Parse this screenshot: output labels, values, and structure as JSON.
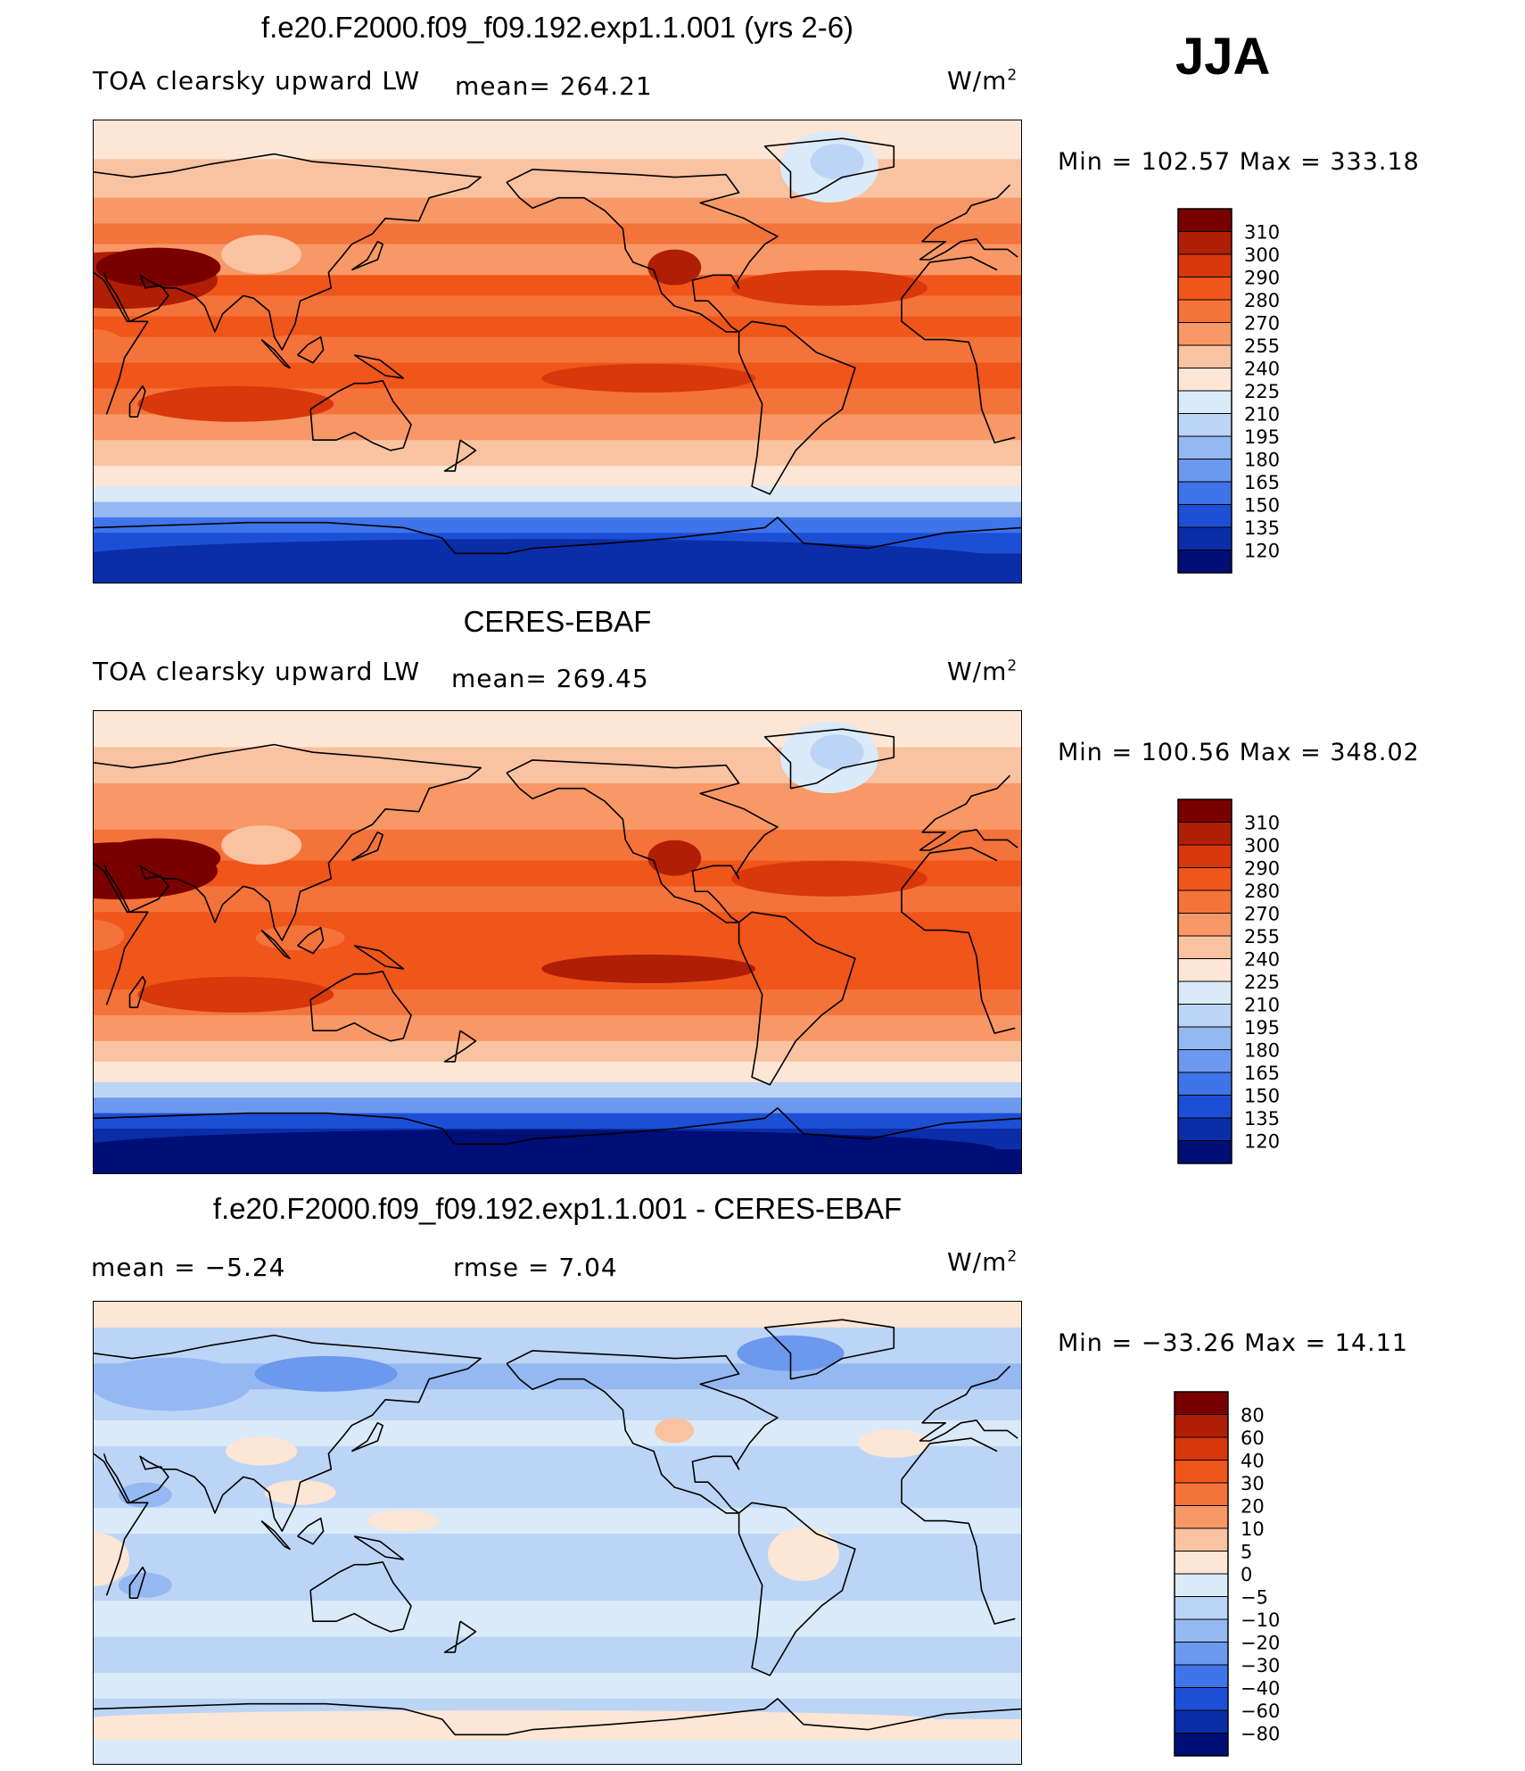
{
  "season": "JJA",
  "panels": [
    {
      "title": "f.e20.F2000.f09_f09.192.exp1.1.001 (yrs 2-6)",
      "variable": "TOA clearsky upward LW",
      "stat": "mean=  264.21",
      "units": "W/m",
      "units_exp": "2",
      "minmax": "Min  =  102.57  Max  =  333.18"
    },
    {
      "title": "CERES-EBAF",
      "variable": "TOA clearsky upward LW",
      "stat": "mean=  269.45",
      "units": "W/m",
      "units_exp": "2",
      "minmax": "Min  =  100.56  Max  =  348.02"
    },
    {
      "title": "f.e20.F2000.f09_f09.192.exp1.1.001 - CERES-EBAF",
      "stat_left": "mean  =    −5.24",
      "stat_right": "rmse  =     7.04",
      "units": "W/m",
      "units_exp": "2",
      "minmax": "Min  =  −33.26  Max  =    14.11"
    }
  ],
  "chart_data": [
    {
      "type": "heatmap",
      "title": "f.e20.F2000.f09_f09.192.exp1.1.001 (yrs 2-6)",
      "variable": "TOA clearsky upward LW",
      "units": "W/m^2",
      "mean": 264.21,
      "min": 102.57,
      "max": 333.18,
      "colorbar_levels": [
        "310",
        "300",
        "290",
        "280",
        "270",
        "255",
        "240",
        "225",
        "210",
        "195",
        "180",
        "165",
        "150",
        "135",
        "120"
      ],
      "colorbar_colors": [
        "#7a0000",
        "#b01e05",
        "#d8380b",
        "#f0551a",
        "#f4733a",
        "#f79866",
        "#f9c2a0",
        "#fde6d5",
        "#dbeaf8",
        "#bcd5f6",
        "#95b8f2",
        "#6c98ee",
        "#3f74ea",
        "#1d4fd6",
        "#0a2ea8",
        "#000e78"
      ]
    },
    {
      "type": "heatmap",
      "title": "CERES-EBAF",
      "variable": "TOA clearsky upward LW",
      "units": "W/m^2",
      "mean": 269.45,
      "min": 100.56,
      "max": 348.02,
      "colorbar_levels": [
        "310",
        "300",
        "290",
        "280",
        "270",
        "255",
        "240",
        "225",
        "210",
        "195",
        "180",
        "165",
        "150",
        "135",
        "120"
      ],
      "colorbar_colors": [
        "#7a0000",
        "#b01e05",
        "#d8380b",
        "#f0551a",
        "#f4733a",
        "#f79866",
        "#f9c2a0",
        "#fde6d5",
        "#dbeaf8",
        "#bcd5f6",
        "#95b8f2",
        "#6c98ee",
        "#3f74ea",
        "#1d4fd6",
        "#0a2ea8",
        "#000e78"
      ]
    },
    {
      "type": "heatmap",
      "title": "f.e20.F2000.f09_f09.192.exp1.1.001 - CERES-EBAF",
      "units": "W/m^2",
      "mean": -5.24,
      "rmse": 7.04,
      "min": -33.26,
      "max": 14.11,
      "colorbar_levels": [
        "80",
        "60",
        "40",
        "30",
        "20",
        "10",
        "5",
        "0",
        "−5",
        "−10",
        "−20",
        "−30",
        "−40",
        "−60",
        "−80"
      ],
      "colorbar_colors": [
        "#7a0000",
        "#b01e05",
        "#d8380b",
        "#f0551a",
        "#f4733a",
        "#f79866",
        "#f9c2a0",
        "#fde6d5",
        "#dbeaf8",
        "#bcd5f6",
        "#95b8f2",
        "#6c98ee",
        "#3f74ea",
        "#1d4fd6",
        "#0a2ea8",
        "#000e78"
      ]
    }
  ]
}
